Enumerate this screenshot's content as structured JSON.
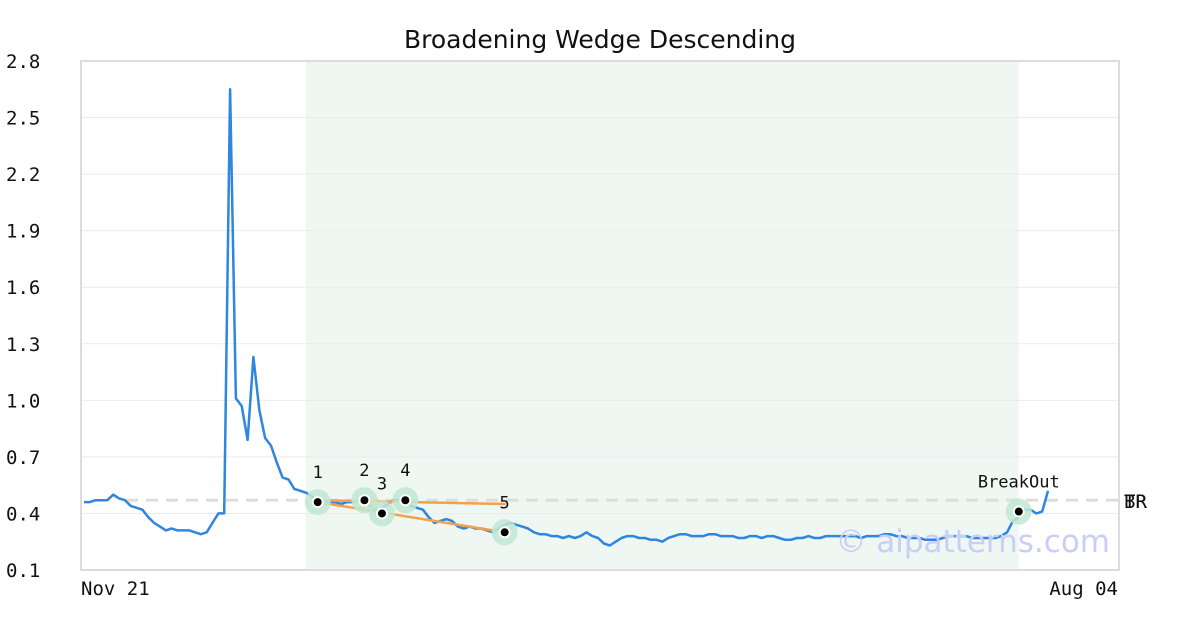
{
  "chart_data": {
    "type": "line",
    "title": "Broadening Wedge Descending",
    "xlabel": "",
    "ylabel": "",
    "ylim": [
      0.1,
      2.8
    ],
    "yticks": [
      "2.8",
      "2.5",
      "2.2",
      "1.9",
      "1.6",
      "1.3",
      "1.0",
      "0.7",
      "0.4",
      "0.1"
    ],
    "xtick_labels": [
      "Nov 21",
      "Aug 04"
    ],
    "grid": "horizontal",
    "colors": {
      "price_line": "#2e86de",
      "trend_lines": "#f5a04a",
      "highlight_band": "#eef7f2",
      "marker_halo": "#bfe8d4",
      "dashed_level": "#dddddd",
      "watermark": "#c9cef5"
    },
    "pattern_band_index_range": [
      38,
      160
    ],
    "dashed_level_value": 0.47,
    "series": [
      {
        "values": [
          0.46,
          0.46,
          0.47,
          0.47,
          0.47,
          0.5,
          0.48,
          0.47,
          0.44,
          0.43,
          0.42,
          0.38,
          0.35,
          0.33,
          0.31,
          0.32,
          0.31,
          0.31,
          0.31,
          0.3,
          0.29,
          0.3,
          0.35,
          0.4,
          0.4,
          2.65,
          1.01,
          0.97,
          0.79,
          1.23,
          0.95,
          0.8,
          0.76,
          0.67,
          0.59,
          0.58,
          0.53,
          0.52,
          0.51,
          0.49,
          0.47,
          0.46,
          0.46,
          0.46,
          0.45,
          0.46,
          0.46,
          0.47,
          0.46,
          0.44,
          0.41,
          0.43,
          0.45,
          0.47,
          0.47,
          0.46,
          0.44,
          0.43,
          0.42,
          0.38,
          0.35,
          0.36,
          0.37,
          0.36,
          0.33,
          0.32,
          0.33,
          0.32,
          0.32,
          0.31,
          0.3,
          0.32,
          0.34,
          0.35,
          0.34,
          0.33,
          0.32,
          0.3,
          0.29,
          0.29,
          0.28,
          0.28,
          0.27,
          0.28,
          0.27,
          0.28,
          0.3,
          0.28,
          0.27,
          0.24,
          0.23,
          0.25,
          0.27,
          0.28,
          0.28,
          0.27,
          0.27,
          0.26,
          0.26,
          0.25,
          0.27,
          0.28,
          0.29,
          0.29,
          0.28,
          0.28,
          0.28,
          0.29,
          0.29,
          0.28,
          0.28,
          0.28,
          0.27,
          0.27,
          0.28,
          0.28,
          0.27,
          0.28,
          0.28,
          0.27,
          0.26,
          0.26,
          0.27,
          0.27,
          0.28,
          0.27,
          0.27,
          0.28,
          0.28,
          0.28,
          0.28,
          0.28,
          0.28,
          0.27,
          0.28,
          0.28,
          0.28,
          0.29,
          0.29,
          0.28,
          0.28,
          0.27,
          0.27,
          0.27,
          0.26,
          0.26,
          0.26,
          0.27,
          0.28,
          0.28,
          0.28,
          0.28,
          0.27,
          0.27,
          0.27,
          0.27,
          0.27,
          0.28,
          0.3,
          0.36,
          0.38,
          0.42,
          0.42,
          0.4,
          0.41,
          0.52
        ]
      }
    ],
    "points": [
      {
        "label": "1",
        "index": 40,
        "value": 0.46
      },
      {
        "label": "2",
        "index": 48,
        "value": 0.47
      },
      {
        "label": "3",
        "index": 51,
        "value": 0.4
      },
      {
        "label": "4",
        "index": 55,
        "value": 0.47
      },
      {
        "label": "5",
        "index": 72,
        "value": 0.3
      },
      {
        "label": "BreakOut",
        "index": 160,
        "value": 0.41
      }
    ],
    "trend_lines": [
      {
        "from_index": 40,
        "from_value": 0.47,
        "to_index": 72,
        "to_value": 0.45
      },
      {
        "from_index": 40,
        "from_value": 0.46,
        "to_index": 72,
        "to_value": 0.3
      },
      {
        "from_index": 48,
        "from_value": 0.47,
        "to_index": 51,
        "to_value": 0.4
      }
    ],
    "right_edge_labels": [
      "TR",
      "BR"
    ],
    "watermark": "© aipatterns.com"
  }
}
